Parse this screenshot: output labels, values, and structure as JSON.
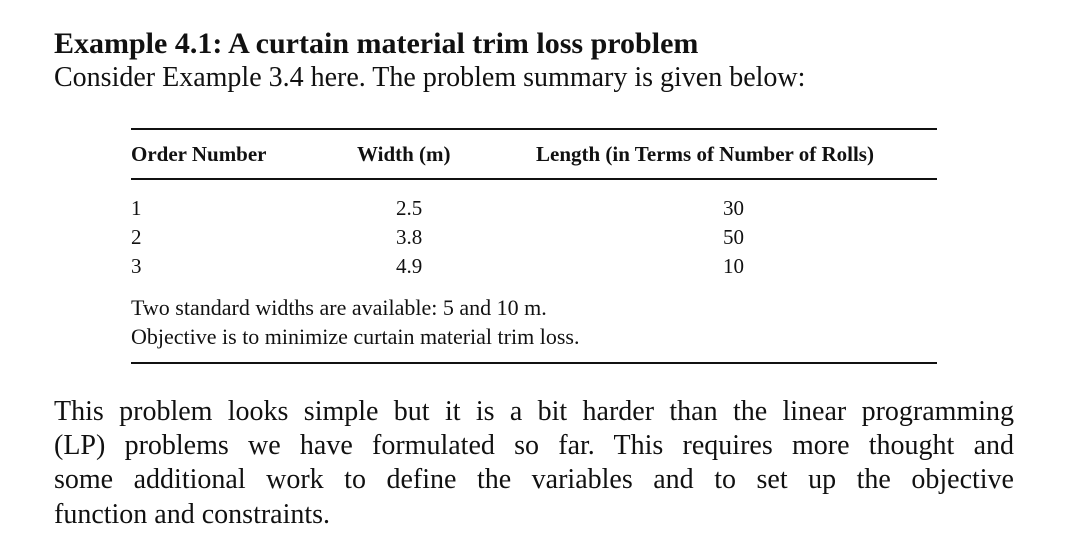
{
  "section": {
    "heading": "Example 4.1: A curtain material trim loss problem",
    "intro": "Consider Example 3.4 here. The problem summary is given below:"
  },
  "table": {
    "headers": [
      "Order Number",
      "Width (m)",
      "Length (in Terms of Number of Rolls)"
    ],
    "rows": [
      [
        "1",
        "2.5",
        "30"
      ],
      [
        "2",
        "3.8",
        "50"
      ],
      [
        "3",
        "4.9",
        "10"
      ]
    ],
    "notes": [
      "Two standard widths are available: 5 and 10 m.",
      "Objective is to minimize curtain material trim loss."
    ]
  },
  "paragraph": {
    "lines": [
      "This problem looks simple but it is a bit harder than the linear programming",
      "(LP) problems we have formulated so far. This requires more thought and",
      "some additional work to define the variables and to set up the objective",
      "function and constraints."
    ]
  }
}
